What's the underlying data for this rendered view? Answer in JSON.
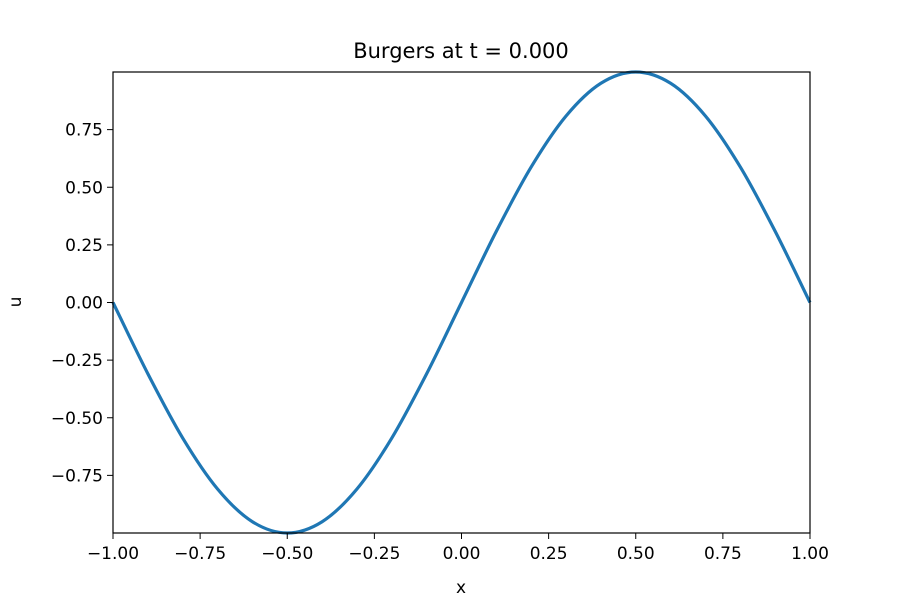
{
  "chart_data": {
    "type": "line",
    "title": "Burgers at t = 0.000",
    "xlabel": "x",
    "ylabel": "u",
    "xlim": [
      -1.0,
      1.0
    ],
    "ylim": [
      -1.0,
      1.0
    ],
    "grid": false,
    "legend": "none",
    "x_ticks": [
      -1.0,
      -0.75,
      -0.5,
      -0.25,
      0.0,
      0.25,
      0.5,
      0.75,
      1.0
    ],
    "x_tick_labels": [
      "−1.00",
      "−0.75",
      "−0.50",
      "−0.25",
      "0.00",
      "0.25",
      "0.50",
      "0.75",
      "1.00"
    ],
    "y_ticks": [
      -0.75,
      -0.5,
      -0.25,
      0.0,
      0.25,
      0.5,
      0.75
    ],
    "y_tick_labels": [
      "−0.75",
      "−0.50",
      "−0.25",
      "0.00",
      "0.25",
      "0.50",
      "0.75"
    ],
    "series": [
      {
        "color": "#1f77b4",
        "x": [
          -1.0,
          -0.9,
          -0.8,
          -0.7,
          -0.6,
          -0.5,
          -0.4,
          -0.3,
          -0.2,
          -0.1,
          0.0,
          0.1,
          0.2,
          0.3,
          0.4,
          0.5,
          0.6,
          0.7,
          0.8,
          0.9,
          1.0
        ],
        "y": [
          0.0,
          -0.309,
          -0.588,
          -0.809,
          -0.951,
          -1.0,
          -0.951,
          -0.809,
          -0.588,
          -0.309,
          0.0,
          0.309,
          0.588,
          0.809,
          0.951,
          1.0,
          0.951,
          0.809,
          0.588,
          0.309,
          0.0
        ]
      }
    ]
  }
}
